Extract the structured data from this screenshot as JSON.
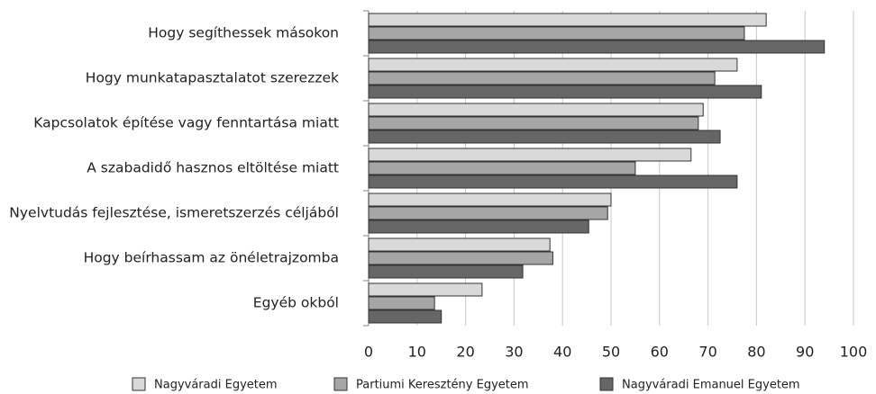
{
  "chart_data": {
    "type": "bar",
    "orientation": "horizontal",
    "categories": [
      "Hogy segíthessek másokon",
      "Hogy munkatapasztalatot szerezzek",
      "Kapcsolatok építése vagy fenntartása miatt",
      "A szabadidő hasznos eltöltése miatt",
      "Nyelvtudás fejlesztése, ismeretszerzés céljából",
      "Hogy beírhassam az önéletrajzomba",
      "Egyéb okból"
    ],
    "series": [
      {
        "name": "Nagyváradi Egyetem",
        "color": "#d9d9d9",
        "values": [
          82,
          76,
          69,
          66.5,
          50,
          37.4,
          23.4
        ]
      },
      {
        "name": "Partiumi Keresztény Egyetem",
        "color": "#a6a6a6",
        "values": [
          77.5,
          71.4,
          68,
          55,
          49.3,
          38,
          13.6
        ]
      },
      {
        "name": "Nagyváradi Emanuel Egyetem",
        "color": "#666666",
        "values": [
          94,
          81,
          72.5,
          76,
          45.4,
          31.8,
          15
        ]
      }
    ],
    "xlim": [
      0,
      100
    ],
    "xticks": [
      0,
      10,
      20,
      30,
      40,
      50,
      60,
      70,
      80,
      90,
      100
    ],
    "grid": true,
    "legend": "bottom"
  }
}
